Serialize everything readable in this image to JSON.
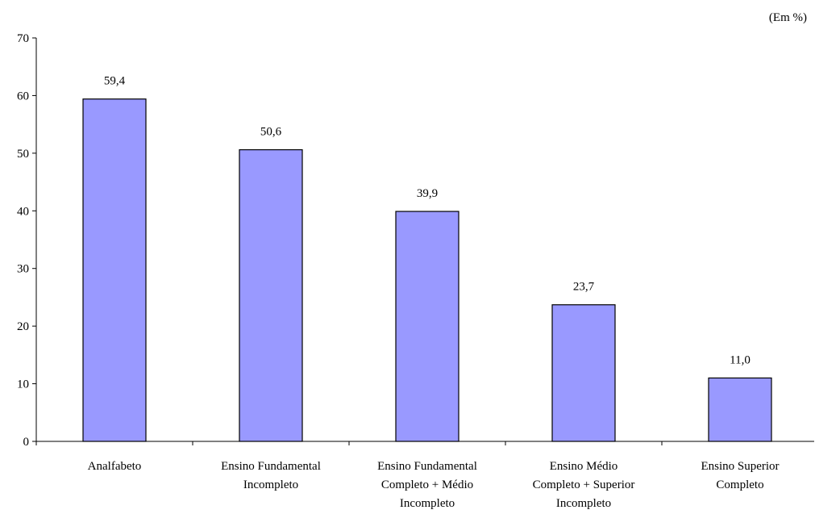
{
  "chart_data": {
    "type": "bar",
    "title": "",
    "xlabel": "",
    "ylabel": "",
    "unit_note": "(Em %)",
    "categories": [
      [
        "Analfabeto"
      ],
      [
        "Ensino Fundamental",
        "Incompleto"
      ],
      [
        "Ensino Fundamental",
        "Completo + Médio",
        "Incompleto"
      ],
      [
        "Ensino Médio",
        "Completo + Superior",
        "Incompleto"
      ],
      [
        "Ensino Superior",
        "Completo"
      ]
    ],
    "values": [
      59.4,
      50.6,
      39.9,
      23.7,
      11.0
    ],
    "data_labels": [
      "59,4",
      "50,6",
      "39,9",
      "23,7",
      "11,0"
    ],
    "ylim": [
      0,
      70
    ],
    "yticks": [
      0,
      10,
      20,
      30,
      40,
      50,
      60,
      70
    ],
    "grid": false,
    "colors": {
      "bar_fill": "#9999ff",
      "bar_stroke": "#000000",
      "axis": "#000000"
    }
  }
}
